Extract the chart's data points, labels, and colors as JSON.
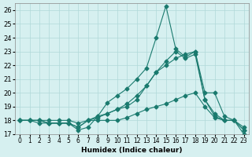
{
  "xlabel": "Humidex (Indice chaleur)",
  "ylabel": "",
  "background_color": "#d6f0f0",
  "grid_color": "#b0d8d8",
  "line_color": "#1a7a6e",
  "xlim": [
    -0.5,
    23.5
  ],
  "ylim": [
    17,
    26.5
  ],
  "yticks": [
    17,
    18,
    19,
    20,
    21,
    22,
    23,
    24,
    25,
    26
  ],
  "xtick_labels": [
    "0",
    "1",
    "2",
    "3",
    "4",
    "5",
    "6",
    "7",
    "8",
    "9",
    "10",
    "11",
    "12",
    "13",
    "14",
    "15",
    "16",
    "17",
    "18",
    "19",
    "20",
    "21",
    "22",
    "23"
  ],
  "series": [
    [
      18.0,
      18.0,
      18.0,
      17.8,
      17.8,
      17.8,
      17.3,
      17.5,
      18.3,
      19.3,
      19.8,
      20.3,
      21.0,
      21.8,
      24.0,
      26.3,
      23.2,
      22.6,
      23.0,
      20.0,
      20.0,
      18.3,
      18.0,
      17.0
    ],
    [
      18.0,
      18.0,
      17.8,
      17.8,
      17.8,
      17.8,
      17.5,
      18.0,
      18.3,
      18.5,
      18.8,
      19.0,
      19.5,
      20.5,
      21.5,
      22.0,
      22.5,
      22.8,
      23.0,
      19.5,
      18.5,
      18.0,
      18.0,
      17.5
    ],
    [
      18.0,
      18.0,
      18.0,
      17.8,
      17.8,
      17.8,
      17.5,
      18.0,
      18.2,
      18.5,
      18.8,
      19.2,
      19.8,
      20.5,
      21.5,
      22.3,
      23.0,
      22.5,
      22.8,
      19.5,
      18.3,
      18.0,
      18.0,
      17.3
    ],
    [
      18.0,
      18.0,
      18.0,
      18.0,
      18.0,
      18.0,
      17.8,
      18.0,
      18.0,
      18.0,
      18.0,
      18.2,
      18.5,
      18.8,
      19.0,
      19.2,
      19.5,
      19.8,
      20.0,
      19.0,
      18.2,
      18.0,
      18.0,
      17.3
    ]
  ]
}
